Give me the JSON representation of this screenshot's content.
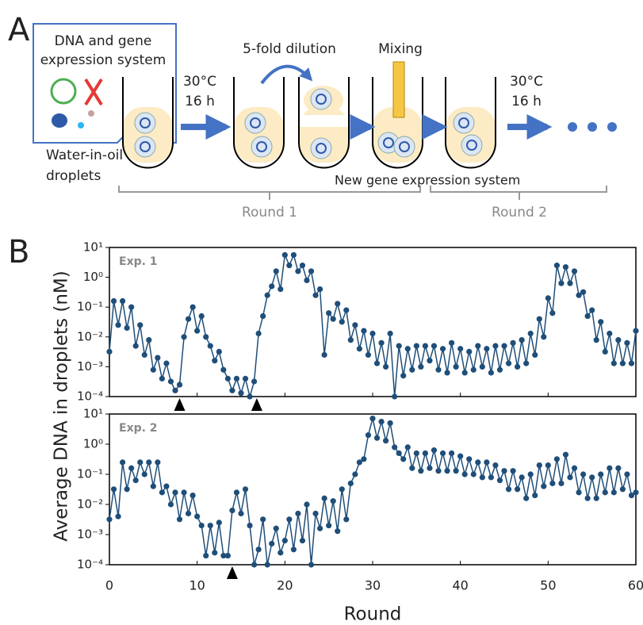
{
  "panel_a": {
    "label": "A",
    "box_text": [
      "DNA and gene",
      "expression system"
    ],
    "temp": "30°C",
    "time": "16 h",
    "dilution": "5-fold dilution",
    "mixing": "Mixing",
    "droplets": [
      "Water-in-oil",
      "droplets"
    ],
    "new_system": "New gene expression system",
    "temp2": "30°C",
    "time2": "16 h",
    "round1": "Round 1",
    "round2": "Round 2"
  },
  "panel_b": {
    "label": "B",
    "ylabel": "Average DNA in droplets (nM)",
    "xlabel": "Round"
  },
  "chart_data": [
    {
      "type": "line",
      "title": "Exp. 1",
      "color": "#1f4e79",
      "log_scale": true,
      "xlim": [
        0,
        60
      ],
      "xticks": [
        0,
        10,
        20,
        30,
        40,
        50,
        60
      ],
      "ylim": [
        0.0001,
        10
      ],
      "yticks": [
        {
          "value": 0.0001,
          "label": "10⁻⁴"
        },
        {
          "value": 0.001,
          "label": "10⁻³"
        },
        {
          "value": 0.01,
          "label": "10⁻²"
        },
        {
          "value": 0.1,
          "label": "10⁻¹"
        },
        {
          "value": 1,
          "label": "10⁰"
        },
        {
          "value": 10,
          "label": "10¹"
        }
      ],
      "arrowheads": [
        8,
        16.8
      ],
      "x": [
        0,
        0.5,
        1,
        1.5,
        2,
        2.5,
        3,
        3.5,
        4,
        4.5,
        5,
        5.5,
        6,
        6.5,
        7,
        7.5,
        8,
        8.5,
        9,
        9.5,
        10,
        10.5,
        11,
        11.5,
        12,
        12.5,
        13,
        13.5,
        14,
        14.5,
        15,
        15.5,
        16,
        16.5,
        17,
        17.5,
        18,
        18.5,
        19,
        19.5,
        20,
        20.5,
        21,
        21.5,
        22,
        22.5,
        23,
        23.5,
        24,
        24.5,
        25,
        25.5,
        26,
        26.5,
        27,
        27.5,
        28,
        28.5,
        29,
        29.5,
        30,
        30.5,
        31,
        31.5,
        32,
        32.5,
        33,
        33.5,
        34,
        34.5,
        35,
        35.5,
        36,
        36.5,
        37,
        37.5,
        38,
        38.5,
        39,
        39.5,
        40,
        40.5,
        41,
        41.5,
        42,
        42.5,
        43,
        43.5,
        44,
        44.5,
        45,
        45.5,
        46,
        46.5,
        47,
        47.5,
        48,
        48.5,
        49,
        49.5,
        50,
        50.5,
        51,
        51.5,
        52,
        52.5,
        53,
        53.5,
        54,
        54.5,
        55,
        55.5,
        56,
        56.5,
        57,
        57.5,
        58,
        58.5,
        59,
        59.5,
        60
      ],
      "values": [
        0.0032,
        0.16,
        0.025,
        0.16,
        0.02,
        0.1,
        0.005,
        0.025,
        0.0025,
        0.0079,
        0.00079,
        0.002,
        0.0004,
        0.0013,
        0.00032,
        0.00016,
        0.00025,
        0.01,
        0.04,
        0.1,
        0.016,
        0.05,
        0.01,
        0.005,
        0.0016,
        0.0032,
        0.00079,
        0.0004,
        0.00016,
        0.0004,
        0.00013,
        0.0004,
        0.0001,
        0.00032,
        0.013,
        0.05,
        0.25,
        0.5,
        1.6,
        0.4,
        5.6,
        2.5,
        5.6,
        1.6,
        2.5,
        0.79,
        1.6,
        0.25,
        0.4,
        0.0025,
        0.063,
        0.04,
        0.13,
        0.032,
        0.079,
        0.0079,
        0.025,
        0.004,
        0.016,
        0.0025,
        0.013,
        0.0013,
        0.0063,
        0.001,
        0.013,
        0.0001,
        0.005,
        0.0005,
        0.004,
        0.00079,
        0.005,
        0.001,
        0.005,
        0.0016,
        0.005,
        0.00079,
        0.004,
        0.00063,
        0.0063,
        0.001,
        0.004,
        0.00063,
        0.0032,
        0.00079,
        0.005,
        0.001,
        0.004,
        0.00063,
        0.005,
        0.00079,
        0.005,
        0.0013,
        0.0063,
        0.001,
        0.0079,
        0.0013,
        0.013,
        0.0025,
        0.04,
        0.01,
        0.2,
        0.063,
        2.5,
        0.63,
        2.2,
        0.63,
        1.6,
        0.25,
        0.32,
        0.05,
        0.079,
        0.0079,
        0.032,
        0.0032,
        0.013,
        0.0013,
        0.0079,
        0.0013,
        0.0063,
        0.0013,
        0.016
      ]
    },
    {
      "type": "line",
      "title": "Exp. 2",
      "color": "#1f4e79",
      "log_scale": true,
      "xlim": [
        0,
        60
      ],
      "xticks": [
        0,
        10,
        20,
        30,
        40,
        50,
        60
      ],
      "ylim": [
        0.0001,
        10
      ],
      "yticks": [
        {
          "value": 0.0001,
          "label": "10⁻⁴"
        },
        {
          "value": 0.001,
          "label": "10⁻³"
        },
        {
          "value": 0.01,
          "label": "10⁻²"
        },
        {
          "value": 0.1,
          "label": "10⁻¹"
        },
        {
          "value": 1,
          "label": "10⁰"
        },
        {
          "value": 10,
          "label": "10¹"
        }
      ],
      "arrowheads": [
        14
      ],
      "x": [
        0,
        0.5,
        1,
        1.5,
        2,
        2.5,
        3,
        3.5,
        4,
        4.5,
        5,
        5.5,
        6,
        6.5,
        7,
        7.5,
        8,
        8.5,
        9,
        9.5,
        10,
        10.5,
        11,
        11.5,
        12,
        12.5,
        13,
        13.5,
        14,
        14.5,
        15,
        15.5,
        16,
        16.5,
        17,
        17.5,
        18,
        18.5,
        19,
        19.5,
        20,
        20.5,
        21,
        21.5,
        22,
        22.5,
        23,
        23.5,
        24,
        24.5,
        25,
        25.5,
        26,
        26.5,
        27,
        27.5,
        28,
        28.5,
        29,
        29.5,
        30,
        30.5,
        31,
        31.5,
        32,
        32.5,
        33,
        33.5,
        34,
        34.5,
        35,
        35.5,
        36,
        36.5,
        37,
        37.5,
        38,
        38.5,
        39,
        39.5,
        40,
        40.5,
        41,
        41.5,
        42,
        42.5,
        43,
        43.5,
        44,
        44.5,
        45,
        45.5,
        46,
        46.5,
        47,
        47.5,
        48,
        48.5,
        49,
        49.5,
        50,
        50.5,
        51,
        51.5,
        52,
        52.5,
        53,
        53.5,
        54,
        54.5,
        55,
        55.5,
        56,
        56.5,
        57,
        57.5,
        58,
        58.5,
        59,
        59.5,
        60
      ],
      "values": [
        0.0032,
        0.032,
        0.004,
        0.25,
        0.032,
        0.16,
        0.063,
        0.25,
        0.1,
        0.25,
        0.04,
        0.25,
        0.025,
        0.04,
        0.01,
        0.025,
        0.0032,
        0.025,
        0.005,
        0.02,
        0.004,
        0.002,
        0.0002,
        0.002,
        0.00025,
        0.0025,
        0.0002,
        0.0002,
        0.0063,
        0.025,
        0.005,
        0.032,
        0.002,
        0.0001,
        0.00032,
        0.0032,
        0.0001,
        0.0005,
        0.0016,
        0.00025,
        0.00063,
        0.0032,
        0.00032,
        0.005,
        0.00063,
        0.01,
        0.0001,
        0.005,
        0.0016,
        0.016,
        0.002,
        0.013,
        0.0013,
        0.032,
        0.0032,
        0.05,
        0.1,
        0.25,
        0.32,
        2,
        7.1,
        1.6,
        5.6,
        1.3,
        5,
        0.79,
        0.5,
        0.32,
        0.79,
        0.16,
        0.5,
        0.13,
        0.5,
        0.16,
        0.63,
        0.13,
        0.5,
        0.13,
        0.5,
        0.13,
        0.4,
        0.1,
        0.32,
        0.1,
        0.25,
        0.079,
        0.25,
        0.079,
        0.2,
        0.063,
        0.13,
        0.032,
        0.13,
        0.032,
        0.079,
        0.016,
        0.1,
        0.02,
        0.2,
        0.04,
        0.2,
        0.05,
        0.32,
        0.05,
        0.45,
        0.079,
        0.16,
        0.025,
        0.1,
        0.016,
        0.079,
        0.016,
        0.1,
        0.025,
        0.16,
        0.025,
        0.16,
        0.032,
        0.1,
        0.02,
        0.025
      ]
    }
  ]
}
